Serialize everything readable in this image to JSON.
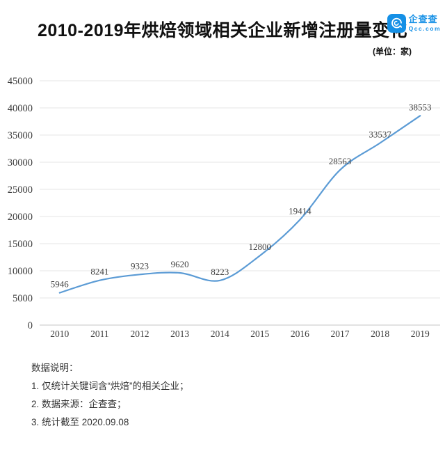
{
  "header": {
    "title": "2010-2019年烘焙领域相关企业新增注册量变化",
    "unit_label": "(单位：家)",
    "logo": {
      "name": "企查查",
      "domain": "Qcc.com",
      "brand_color": "#1590e6"
    }
  },
  "chart_data": {
    "type": "line",
    "title": "2010-2019年烘焙领域相关企业新增注册量变化",
    "categories": [
      "2010",
      "2011",
      "2012",
      "2013",
      "2014",
      "2015",
      "2016",
      "2017",
      "2018",
      "2019"
    ],
    "values": [
      5946,
      8241,
      9323,
      9620,
      8223,
      12800,
      19414,
      28563,
      33537,
      38553
    ],
    "unit": "家",
    "xlabel": "",
    "ylabel": "",
    "ylim": [
      0,
      45000
    ],
    "yticks": [
      0,
      5000,
      10000,
      15000,
      20000,
      25000,
      30000,
      35000,
      40000,
      45000
    ],
    "grid": true,
    "smooth": true,
    "data_labels": true,
    "legend_position": "none",
    "line_color": "#5b9bd5",
    "grid_color": "#e5e5e5",
    "axis_line_color": "#c6c6c6",
    "tick_label_color": "#3c3c3c",
    "data_label_color": "#404040"
  },
  "notes": {
    "heading": "数据说明：",
    "items": [
      "1. 仅统计关键词含“烘焙”的相关企业；",
      "2. 数据来源：企查查；",
      "3. 统计截至 2020.09.08"
    ]
  }
}
